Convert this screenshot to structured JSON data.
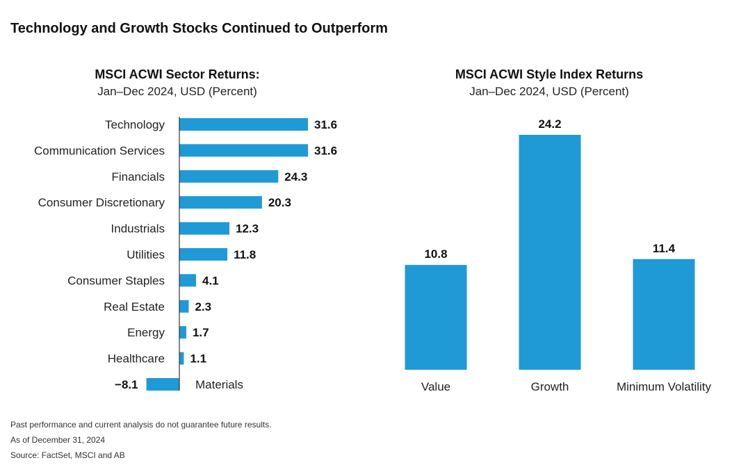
{
  "title": "Technology and Growth Stocks Continued to Outperform",
  "chart_data": [
    {
      "type": "bar",
      "orientation": "horizontal",
      "title": "MSCI ACWI Sector Returns:",
      "subtitle": "Jan–Dec 2024, USD (Percent)",
      "categories": [
        "Technology",
        "Communication Services",
        "Financials",
        "Consumer Discretionary",
        "Industrials",
        "Utilities",
        "Consumer Staples",
        "Real Estate",
        "Energy",
        "Healthcare",
        "Materials"
      ],
      "values": [
        31.6,
        31.6,
        24.3,
        20.3,
        12.3,
        11.8,
        4.1,
        2.3,
        1.7,
        1.1,
        -8.1
      ],
      "labels": [
        "31.6",
        "31.6",
        "24.3",
        "20.3",
        "12.3",
        "11.8",
        "4.1",
        "2.3",
        "1.7",
        "1.1",
        "−8.1"
      ],
      "color": "#1f9ad6"
    },
    {
      "type": "bar",
      "orientation": "vertical",
      "title": "MSCI ACWI Style Index Returns",
      "subtitle": "Jan–Dec 2024, USD (Percent)",
      "categories": [
        "Value",
        "Growth",
        "Minimum Volatility"
      ],
      "values": [
        10.8,
        24.2,
        11.4
      ],
      "labels": [
        "10.8",
        "24.2",
        "11.4"
      ],
      "color": "#1f9ad6"
    }
  ],
  "footer": {
    "line1": "Past performance and current analysis do not guarantee future results.",
    "line2": "As of December 31, 2024",
    "line3": "Source: FactSet, MSCI and AB"
  }
}
